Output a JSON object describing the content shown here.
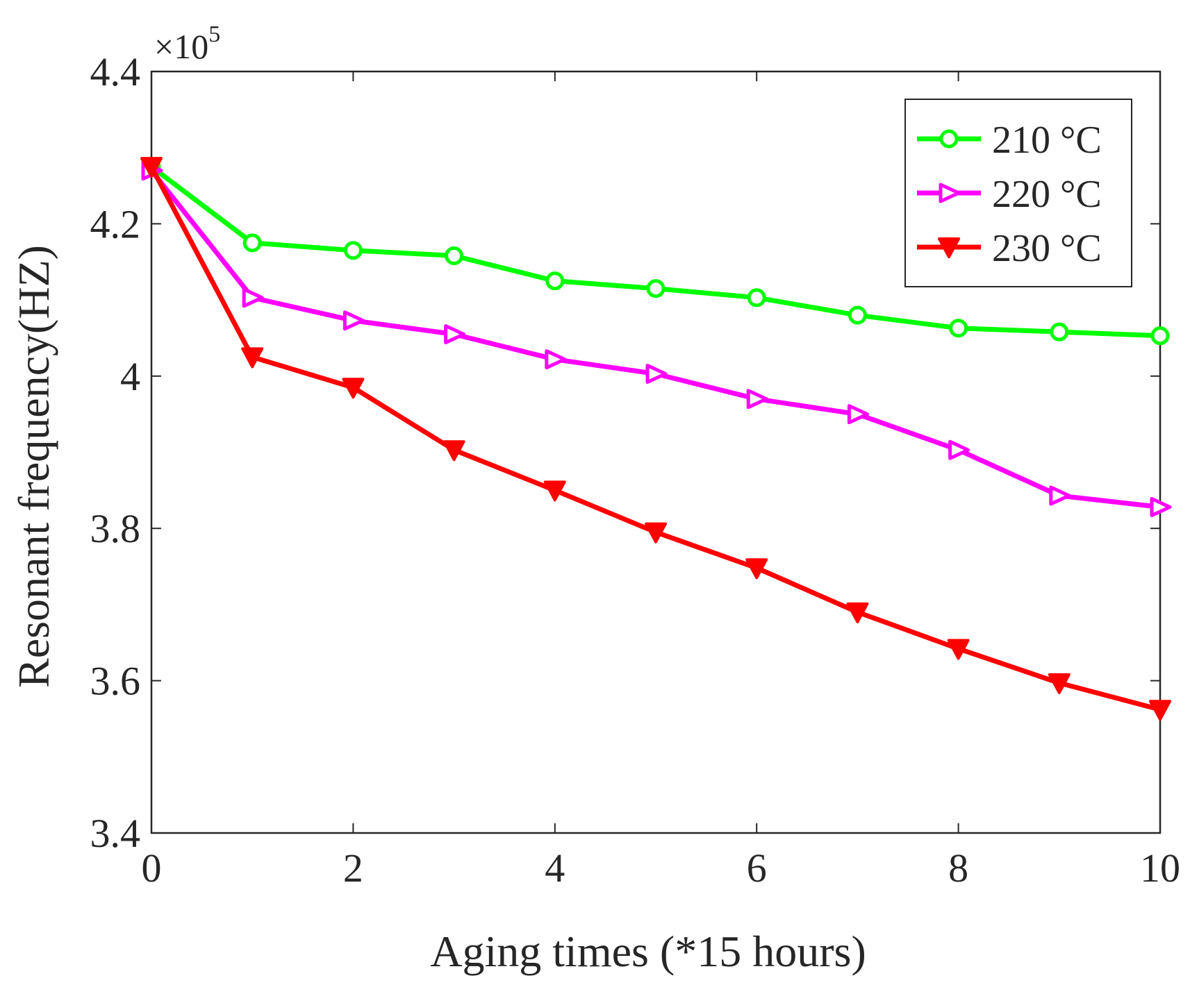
{
  "chart_data": {
    "type": "line",
    "xlabel": "Aging times (*15 hours)",
    "ylabel": "Resonant frequency(HZ)",
    "y_multiplier": {
      "base": "×10",
      "exponent": "5"
    },
    "xlim": [
      0,
      10
    ],
    "ylim": [
      3.4,
      4.4
    ],
    "xticks": [
      0,
      2,
      4,
      6,
      8,
      10
    ],
    "xtick_labels": [
      "0",
      "2",
      "4",
      "6",
      "8",
      "10"
    ],
    "yticks": [
      3.4,
      3.6,
      3.8,
      4.0,
      4.2,
      4.4
    ],
    "ytick_labels": [
      "3.4",
      "3.6",
      "3.8",
      "4",
      "4.2",
      "4.4"
    ],
    "grid": false,
    "legend_position": "top-right",
    "x": [
      0,
      1,
      2,
      3,
      4,
      5,
      6,
      7,
      8,
      9,
      10
    ],
    "series": [
      {
        "name": "210 °C",
        "color": "#00ff00",
        "marker": "circle",
        "values": [
          4.275,
          4.175,
          4.165,
          4.158,
          4.125,
          4.115,
          4.103,
          4.08,
          4.063,
          4.058,
          4.053
        ]
      },
      {
        "name": "220 °C",
        "color": "#ff00ff",
        "marker": "triangle-right",
        "values": [
          4.27,
          4.103,
          4.073,
          4.055,
          4.022,
          4.003,
          3.97,
          3.95,
          3.903,
          3.843,
          3.828
        ]
      },
      {
        "name": "230 °C",
        "color": "#ff0000",
        "marker": "triangle-down",
        "values": [
          4.275,
          4.025,
          3.985,
          3.903,
          3.85,
          3.795,
          3.748,
          3.69,
          3.642,
          3.597,
          3.562
        ]
      }
    ]
  }
}
